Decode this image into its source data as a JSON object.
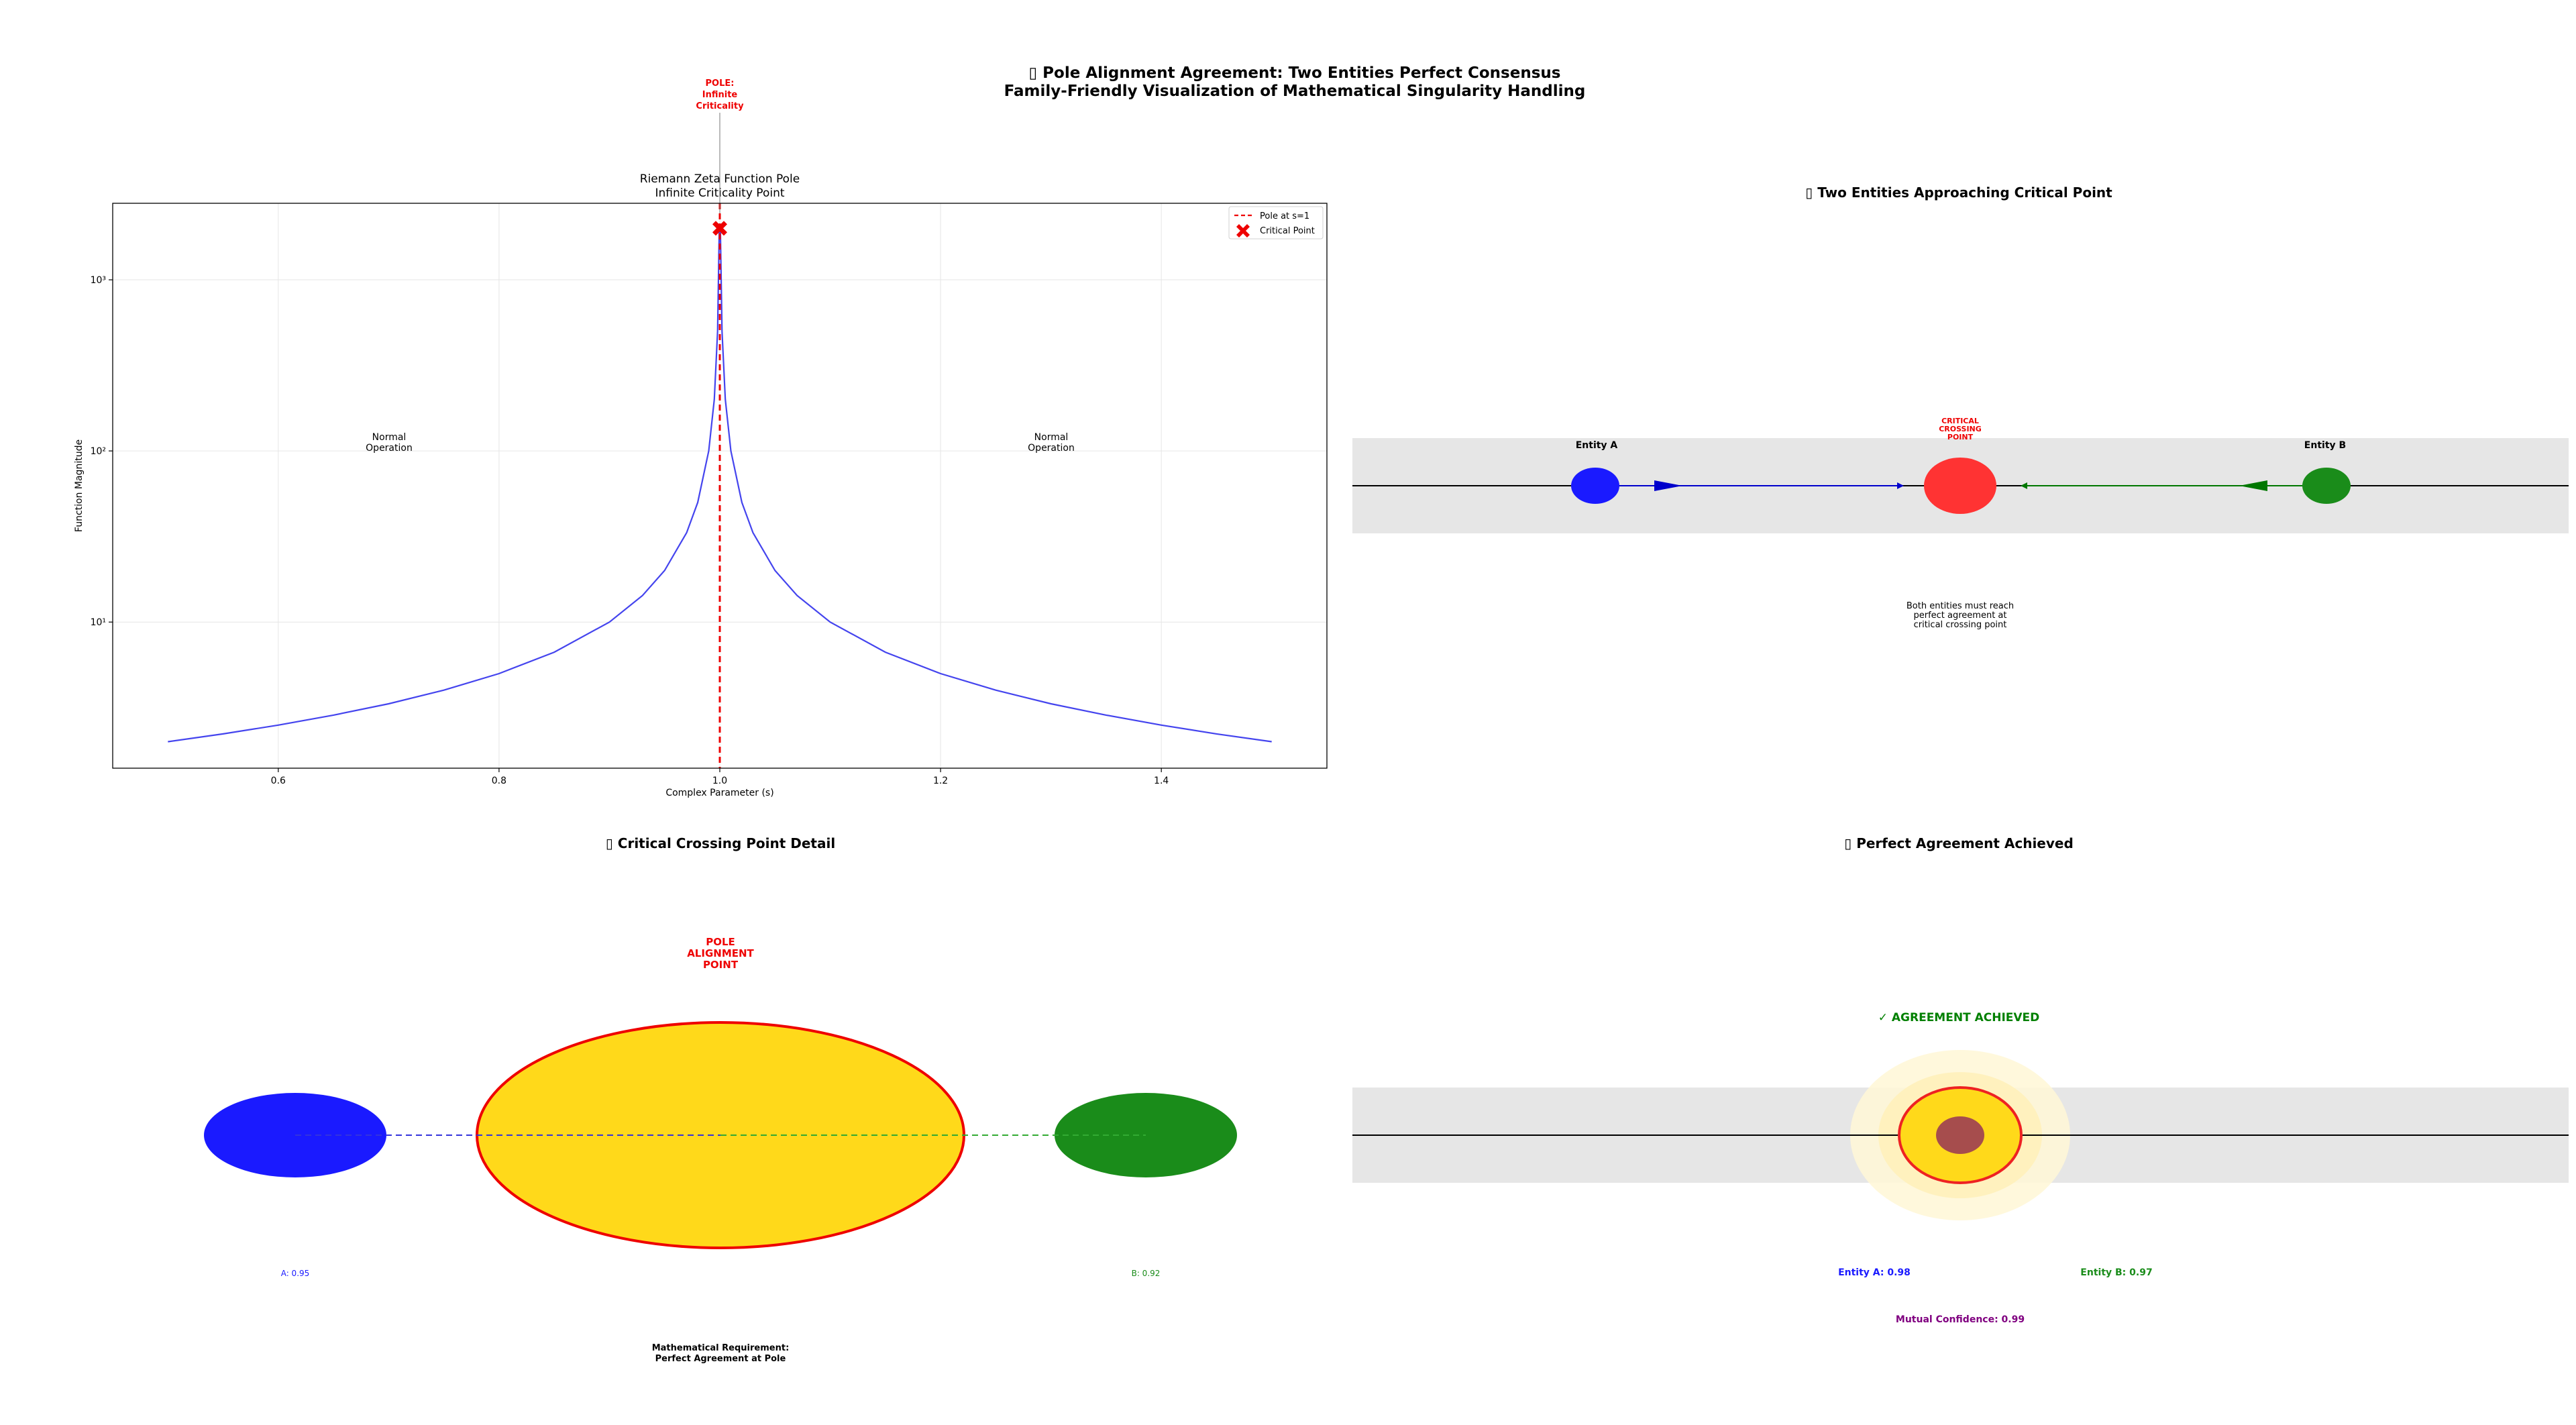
{
  "figure": {
    "suptitle_line1": "▯ Pole Alignment Agreement: Two Entities Perfect Consensus",
    "suptitle_line2": "Family-Friendly Visualization of Mathematical Singularity Handling"
  },
  "panel1": {
    "pole_label": [
      "POLE:",
      "Infinite",
      "Criticality"
    ],
    "normal_left": [
      "Normal",
      "Operation"
    ],
    "normal_right": [
      "Normal",
      "Operation"
    ]
  },
  "chart_data": {
    "type": "line",
    "title": "Riemann Zeta Function Pole\nInfinite Criticality Point",
    "title_lines": [
      "Riemann Zeta Function Pole",
      "Infinite Criticality Point"
    ],
    "xlabel": "Complex Parameter (s)",
    "ylabel": "Function Magnitude",
    "xlim": [
      0.45,
      1.55
    ],
    "ylim": [
      1.4,
      2800
    ],
    "yscale": "log",
    "grid": true,
    "xticks": [
      0.6,
      0.8,
      1.0,
      1.2,
      1.4
    ],
    "xtick_labels": [
      "0.6",
      "0.8",
      "1.0",
      "1.2",
      "1.4"
    ],
    "yticks": [
      10,
      100,
      1000
    ],
    "ytick_labels": [
      "10¹",
      "10²",
      "10³"
    ],
    "series": [
      {
        "kind": "curve",
        "color": "#4444ee",
        "x": [
          0.5,
          0.55,
          0.6,
          0.65,
          0.7,
          0.75,
          0.8,
          0.85,
          0.9,
          0.93,
          0.95,
          0.97,
          0.98,
          0.99,
          0.995,
          0.998,
          0.9995,
          1.0005,
          1.002,
          1.005,
          1.01,
          1.02,
          1.03,
          1.05,
          1.07,
          1.1,
          1.15,
          1.2,
          1.25,
          1.3,
          1.35,
          1.4,
          1.45,
          1.5
        ],
        "y": [
          2,
          2.22,
          2.5,
          2.86,
          3.33,
          4,
          5,
          6.67,
          10,
          14.3,
          20,
          33.3,
          50,
          100,
          200,
          500,
          2000,
          2000,
          500,
          200,
          100,
          50,
          33.3,
          20,
          14.3,
          10,
          6.67,
          5,
          4,
          3.33,
          2.86,
          2.5,
          2.22,
          2
        ]
      },
      {
        "kind": "vline",
        "name": "Pole at s=1",
        "x": 1.0,
        "color": "#ee0000"
      },
      {
        "kind": "marker",
        "name": "Critical Point",
        "x": 1.0,
        "y": 2000,
        "color": "#ee0000"
      }
    ],
    "legend_position": "upper right"
  },
  "panel2": {
    "title": "▯ Two Entities Approaching Critical Point",
    "entity_a": "Entity A",
    "entity_b": "Entity B",
    "crossing_label": [
      "CRITICAL",
      "CROSSING",
      "POINT"
    ],
    "note": [
      "Both entities must reach",
      "perfect agreement at",
      "critical crossing point"
    ]
  },
  "panel3": {
    "title": "▯ Critical Crossing Point Detail",
    "alignment_label": [
      "POLE",
      "ALIGNMENT",
      "POINT"
    ],
    "a_value": "A: 0.95",
    "b_value": "B: 0.92",
    "requirement": [
      "Mathematical Requirement:",
      "Perfect Agreement at Pole"
    ]
  },
  "panel4": {
    "title": "▯ Perfect Agreement Achieved",
    "achieved": "✓ AGREEMENT ACHIEVED",
    "entity_a_conf": "Entity A: 0.98",
    "entity_b_conf": "Entity B: 0.97",
    "mutual": "Mutual Confidence: 0.99"
  },
  "colors": {
    "entity_a": "#1a1aff",
    "entity_b": "#1a8c1a",
    "critical": "#ff3333",
    "pole_red": "#ee0000",
    "gold": "#ffd91a",
    "band": "#e6e6e6",
    "purple": "#800080",
    "agree_green": "#008000"
  }
}
